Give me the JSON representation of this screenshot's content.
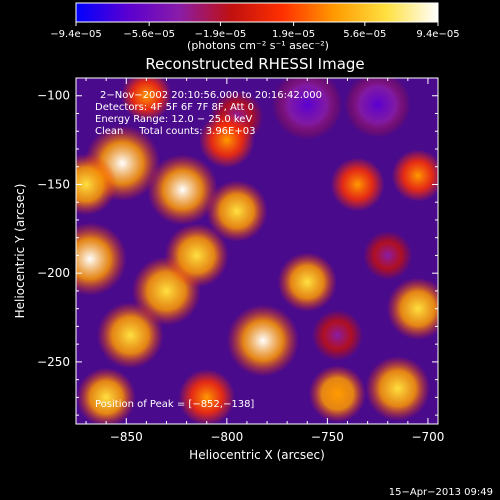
{
  "chart_data": {
    "type": "heatmap",
    "title": "Reconstructed RHESSI Image",
    "xlabel": "Heliocentric X (arcsec)",
    "ylabel": "Heliocentric Y (arcsec)",
    "xlim": [
      -875,
      -695
    ],
    "ylim": [
      -285,
      -90
    ],
    "x_ticks": [
      -850,
      -800,
      -750,
      -700
    ],
    "x_tick_labels": [
      "−850",
      "−800",
      "−750",
      "−700"
    ],
    "y_ticks": [
      -100,
      -150,
      -200,
      -250
    ],
    "y_tick_labels": [
      "−100",
      "−150",
      "−200",
      "−250"
    ],
    "colorbar": {
      "range": [
        -9.4e-05,
        9.4e-05
      ],
      "ticks": [
        -9.4e-05,
        -5.6e-05,
        -1.9e-05,
        1.9e-05,
        5.6e-05,
        9.4e-05
      ],
      "tick_labels": [
        "−9.4e−05",
        "−5.6e−05",
        "−1.9e−05",
        "1.9e−05",
        "5.6e−05",
        "9.4e−05"
      ],
      "units_label": "(photons cm⁻² s⁻¹ asec⁻²)",
      "colors": [
        "#0000ff",
        "#5a00d0",
        "#8a1ca8",
        "#c01010",
        "#ff3000",
        "#ff9a00",
        "#ffe040",
        "#ffffff"
      ]
    },
    "annotations": {
      "time_range": "2−Nov−2002 20:10:56.000 to 20:16:42.000",
      "detectors": "Detectors: 4F 5F 6F 7F 8F, Att 0",
      "energy": "Energy Range: 12.0 − 25.0 keV",
      "clean": "Clean     Total counts: 3.96E+03",
      "peak": "Position of Peak = [−852,−138]"
    },
    "peak": [
      -852,
      -138
    ],
    "sources": [
      {
        "x": -852,
        "y": -138,
        "v": 9.4e-05
      },
      {
        "x": -868,
        "y": -192,
        "v": 8.8e-05
      },
      {
        "x": -822,
        "y": -153,
        "v": 8.2e-05
      },
      {
        "x": -830,
        "y": -210,
        "v": 7.8e-05
      },
      {
        "x": -782,
        "y": -238,
        "v": 8.5e-05
      },
      {
        "x": -848,
        "y": -235,
        "v": 7.2e-05
      },
      {
        "x": -815,
        "y": -190,
        "v": 6.6e-05
      },
      {
        "x": -795,
        "y": -165,
        "v": 6e-05
      },
      {
        "x": -870,
        "y": -150,
        "v": 6e-05
      },
      {
        "x": -760,
        "y": -205,
        "v": 5.5e-05
      },
      {
        "x": -745,
        "y": -268,
        "v": 5e-05
      },
      {
        "x": -705,
        "y": -220,
        "v": 6.2e-05
      },
      {
        "x": -715,
        "y": -265,
        "v": 6.8e-05
      },
      {
        "x": -735,
        "y": -150,
        "v": 4.2e-05
      },
      {
        "x": -800,
        "y": -125,
        "v": 4.6e-05
      },
      {
        "x": -860,
        "y": -270,
        "v": 5.5e-05
      },
      {
        "x": -810,
        "y": -270,
        "v": 4.8e-05
      },
      {
        "x": -840,
        "y": -100,
        "v": 3.5e-05
      },
      {
        "x": -705,
        "y": -145,
        "v": 3.8e-05
      }
    ],
    "negative_regions": [
      {
        "x": -760,
        "y": -105,
        "v": -8e-05
      },
      {
        "x": -725,
        "y": -105,
        "v": -7e-05
      },
      {
        "x": -795,
        "y": -112,
        "v": -4e-05
      },
      {
        "x": -745,
        "y": -235,
        "v": -3.5e-05
      },
      {
        "x": -720,
        "y": -190,
        "v": -3e-05
      }
    ]
  },
  "footer": {
    "date": "15−Apr−2013 09:49"
  }
}
